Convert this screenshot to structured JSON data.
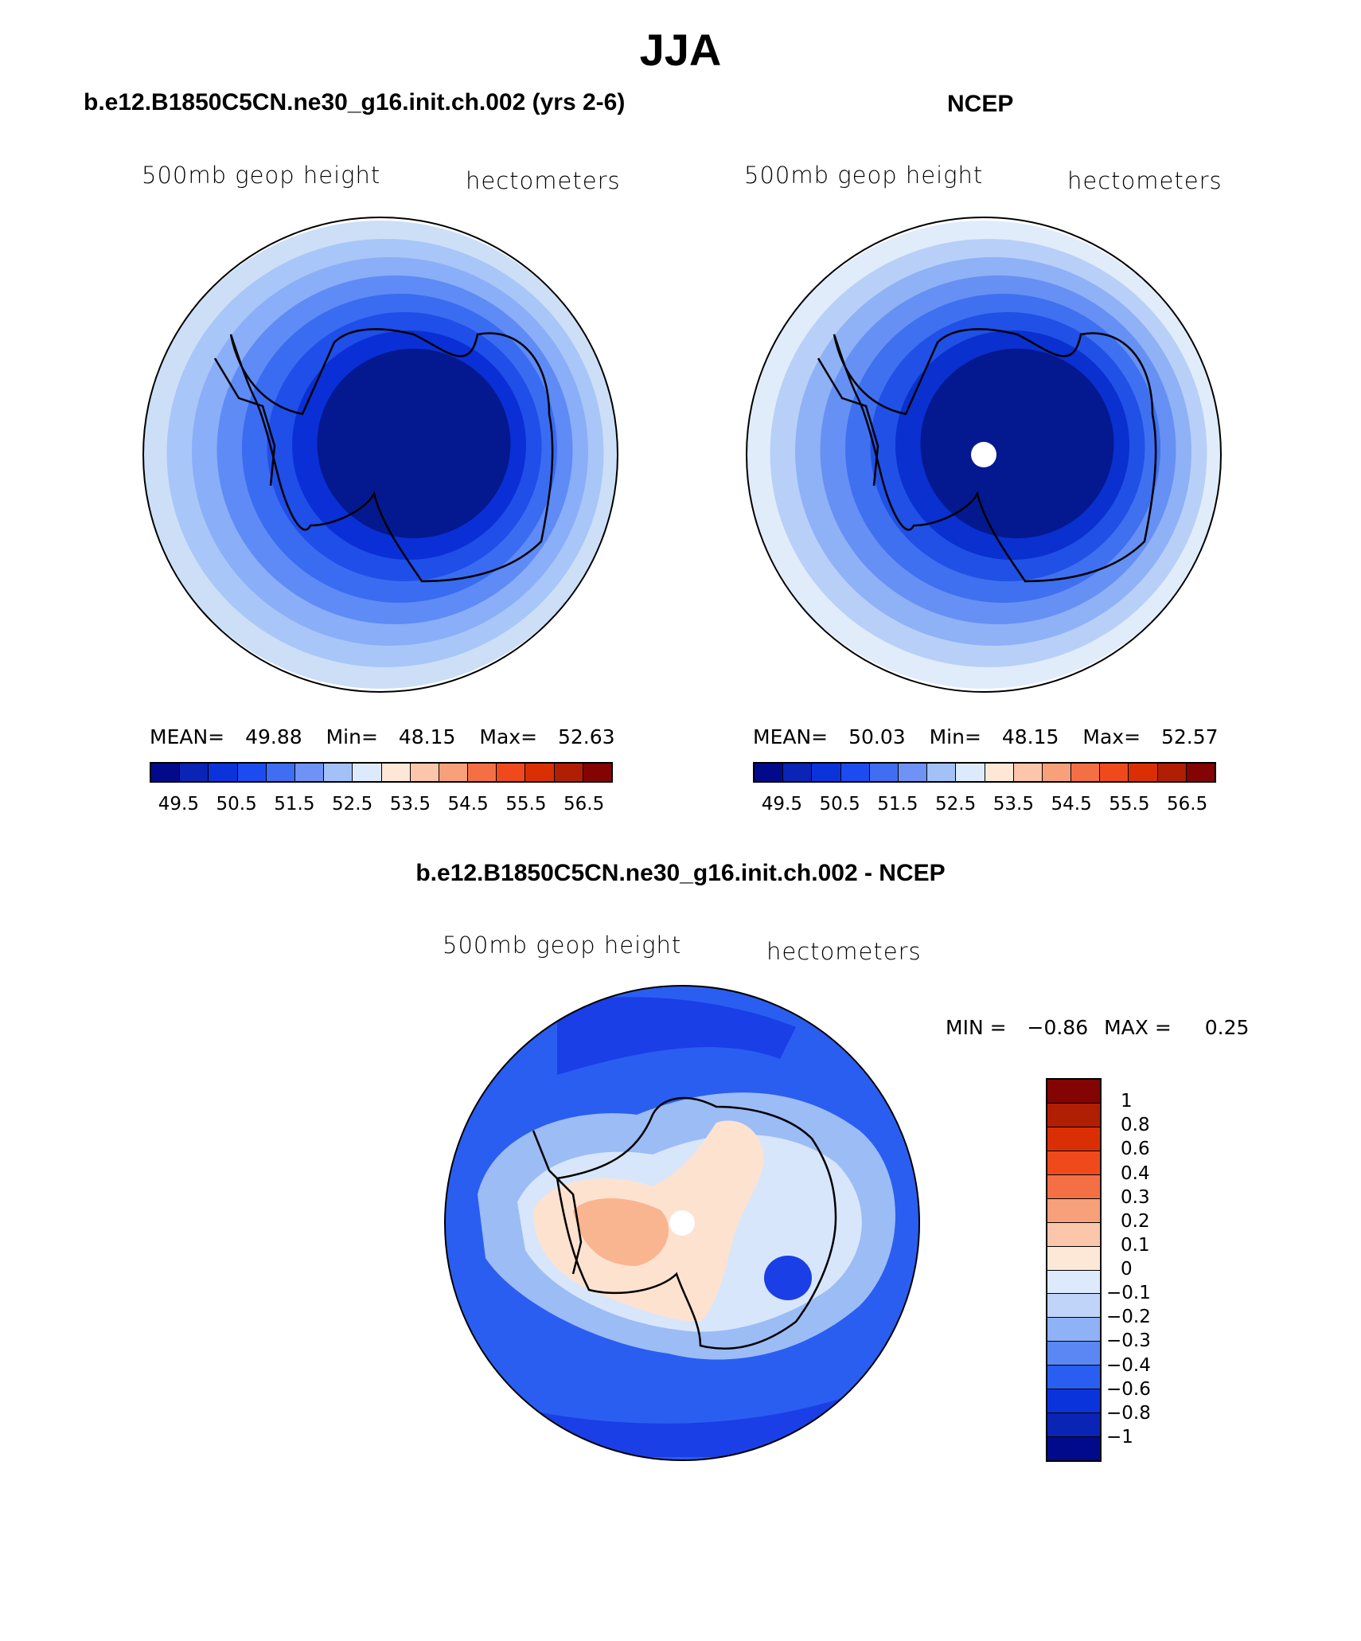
{
  "figure": {
    "season": "JJA",
    "left_title": "b.e12.B1850C5CN.ne30_g16.init.ch.002 (yrs 2-6)",
    "right_title": "NCEP",
    "diff_title": "b.e12.B1850C5CN.ne30_g16.init.ch.002 - NCEP"
  },
  "panels": [
    {
      "variable": "500mb geop height",
      "units": "hectometers",
      "stats": {
        "mean_label": "MEAN=",
        "mean": "49.88",
        "min_label": "Min=",
        "min": "48.15",
        "max_label": "Max=",
        "max": "52.63"
      },
      "rings": [
        "#ccdff7",
        "#a8c6f7",
        "#8aaef7",
        "#5e8bf5",
        "#3a6cf2",
        "#1f4ee8",
        "#0b2fd6",
        "#04198f"
      ]
    },
    {
      "variable": "500mb geop height",
      "units": "hectometers",
      "stats": {
        "mean_label": "MEAN=",
        "mean": "50.03",
        "min_label": "Min=",
        "min": "48.15",
        "max_label": "Max=",
        "max": "52.57"
      },
      "rings": [
        "#e1ecfb",
        "#b8d0f8",
        "#8fb1f6",
        "#6690f3",
        "#3f70f0",
        "#2050e6",
        "#0a30d0",
        "#04198f"
      ]
    }
  ],
  "horizontal_colorbar": {
    "colors": [
      "#020a8c",
      "#0a24b5",
      "#0b33dc",
      "#1c4cf0",
      "#3f6ef3",
      "#6e93f4",
      "#a3c0f7",
      "#ddeafb",
      "#fde7d6",
      "#fbc6a9",
      "#f8a07a",
      "#f56f45",
      "#f04a1c",
      "#da2f05",
      "#b01e04",
      "#830403"
    ],
    "tick_labels": [
      "49.5",
      "50.5",
      "51.5",
      "52.5",
      "53.5",
      "54.5",
      "55.5",
      "56.5"
    ]
  },
  "diff_panel": {
    "variable": "500mb geop height",
    "units": "hectometers",
    "min_label": "MIN =",
    "min": "−0.86",
    "max_label": "MAX =",
    "max": "0.25"
  },
  "vertical_colorbar": {
    "colors": [
      "#830403",
      "#b01e04",
      "#da2f05",
      "#f04a1c",
      "#f56f45",
      "#f8a07a",
      "#fbc6a9",
      "#fde7d6",
      "#ddeafb",
      "#bfd4f8",
      "#8fb1f6",
      "#5a87f3",
      "#2a5ef1",
      "#0b33dc",
      "#0a24b5",
      "#020a8c"
    ],
    "tick_labels": [
      "1",
      "0.8",
      "0.6",
      "0.4",
      "0.3",
      "0.2",
      "0.1",
      "0",
      "−0.1",
      "−0.2",
      "−0.3",
      "−0.4",
      "−0.6",
      "−0.8",
      "−1"
    ]
  },
  "colors": {
    "diff_background": "#2a5ef1",
    "diff_light_blue": "#9cbcf6",
    "diff_lighter_blue": "#d8e6fb",
    "diff_pale_orange": "#fde2cf",
    "diff_orange": "#f9b490",
    "diff_dark_blue": "#1a3fe6",
    "pole_hole": "#ffffff",
    "coastline": "#000000"
  }
}
